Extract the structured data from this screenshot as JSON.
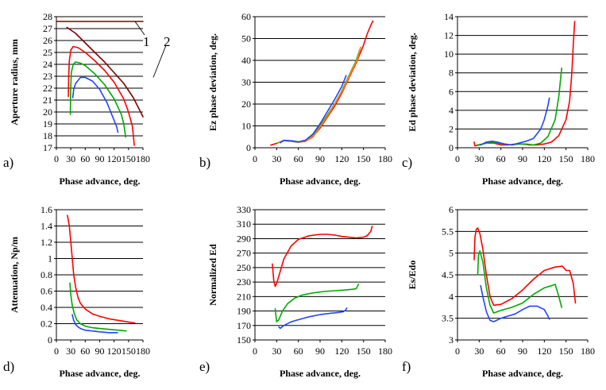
{
  "colors": {
    "red": "#ff0000",
    "green": "#00aa00",
    "blue": "#2244ff",
    "brown": "#800000",
    "grid": "#000000"
  },
  "chart_data": [
    {
      "id": "a",
      "type": "line",
      "panel_label": "a)",
      "xlabel": "Phase advance, deg.",
      "ylabel": "Aperture radius, mm",
      "xlim": [
        0,
        180
      ],
      "ylim": [
        17,
        28
      ],
      "xticks": [
        "0",
        "30",
        "60",
        "90",
        "120",
        "150",
        "180"
      ],
      "yticks": [
        "17",
        "18",
        "19",
        "20",
        "21",
        "22",
        "23",
        "24",
        "25",
        "26",
        "27",
        "28"
      ],
      "hgrid": [
        17,
        18,
        19,
        20,
        21,
        22,
        23,
        24,
        25,
        26,
        27,
        28
      ],
      "annotations": [
        "1",
        "2"
      ],
      "series": [
        {
          "name": "1",
          "color": "#800000",
          "x": [
            0,
            180
          ],
          "y": [
            27.6,
            27.6
          ]
        },
        {
          "name": "2",
          "color": "#800000",
          "x": [
            22,
            40,
            60,
            80,
            100,
            120,
            140,
            160,
            180
          ],
          "y": [
            27.1,
            26.6,
            25.8,
            25.0,
            24.2,
            23.3,
            22.4,
            21.2,
            19.6
          ]
        },
        {
          "name": "red",
          "color": "#ff0000",
          "x": [
            25,
            25.5,
            27,
            30,
            35,
            45,
            60,
            80,
            100,
            120,
            140,
            150,
            158,
            162
          ],
          "y": [
            21.3,
            22.8,
            24.3,
            25.2,
            25.5,
            25.4,
            25.0,
            24.3,
            23.5,
            22.5,
            21.1,
            20.0,
            18.8,
            17.2
          ]
        },
        {
          "name": "green",
          "color": "#00aa00",
          "x": [
            29,
            29.5,
            31,
            35,
            40,
            50,
            60,
            80,
            100,
            120,
            135,
            140,
            144
          ],
          "y": [
            19.8,
            21.7,
            23.3,
            24.0,
            24.2,
            24.1,
            23.9,
            23.2,
            22.3,
            21.1,
            19.8,
            19.0,
            17.9
          ]
        },
        {
          "name": "blue",
          "color": "#2244ff",
          "x": [
            34,
            36,
            40,
            50,
            60,
            75,
            90,
            105,
            115,
            125,
            128
          ],
          "y": [
            21.2,
            21.9,
            22.4,
            22.9,
            22.9,
            22.6,
            21.9,
            20.8,
            19.8,
            18.8,
            18.3
          ]
        }
      ]
    },
    {
      "id": "b",
      "type": "line",
      "panel_label": "b)",
      "xlabel": "Phase advance, deg.",
      "ylabel": "Ez phase deviation, deg.",
      "xlim": [
        0,
        180
      ],
      "ylim": [
        0,
        60
      ],
      "xticks": [
        "0",
        "30",
        "60",
        "90",
        "120",
        "150",
        "180"
      ],
      "yticks": [
        "0",
        "10",
        "20",
        "30",
        "40",
        "50",
        "60"
      ],
      "hgrid": [
        0,
        10,
        20,
        30,
        40,
        50,
        60
      ],
      "series": [
        {
          "name": "red",
          "color": "#ff0000",
          "x": [
            22,
            30,
            40,
            50,
            60,
            70,
            80,
            90,
            100,
            110,
            120,
            130,
            140,
            150,
            155,
            160,
            163
          ],
          "y": [
            1.2,
            2,
            3.3,
            3,
            2.5,
            3,
            5,
            9,
            14,
            19,
            25,
            32,
            39,
            47,
            52,
            56,
            58
          ]
        },
        {
          "name": "green",
          "color": "#00aa00",
          "x": [
            30,
            40,
            50,
            60,
            70,
            80,
            90,
            100,
            110,
            120,
            130,
            140,
            145
          ],
          "y": [
            2,
            3.3,
            3,
            2.6,
            3.2,
            5.5,
            10,
            15,
            20,
            26,
            33,
            40,
            45
          ]
        },
        {
          "name": "orange",
          "color": "#ff8800",
          "x": [
            32,
            42,
            52,
            62,
            72,
            82,
            92,
            102,
            112,
            122,
            132,
            142,
            146
          ],
          "y": [
            2.2,
            3.4,
            3,
            2.7,
            3.4,
            5.8,
            10.5,
            15.5,
            21,
            27,
            34,
            41,
            46
          ]
        },
        {
          "name": "blue",
          "color": "#2244ff",
          "x": [
            35,
            40,
            50,
            60,
            70,
            80,
            90,
            100,
            110,
            120,
            126
          ],
          "y": [
            2.3,
            3.4,
            3.2,
            2.7,
            3.5,
            6.2,
            11,
            16.5,
            22,
            28,
            33
          ]
        }
      ]
    },
    {
      "id": "c",
      "type": "line",
      "panel_label": "c)",
      "xlabel": "Phase advance, deg.",
      "ylabel": "Ed phase deviation, deg.",
      "xlim": [
        0,
        180
      ],
      "ylim": [
        0,
        14
      ],
      "xticks": [
        "0",
        "30",
        "60",
        "90",
        "120",
        "150",
        "180"
      ],
      "yticks": [
        "0",
        "2",
        "4",
        "6",
        "8",
        "10",
        "12",
        "14"
      ],
      "hgrid": [
        0,
        2,
        4,
        6,
        8,
        10,
        12,
        14
      ],
      "series": [
        {
          "name": "red",
          "color": "#ff0000",
          "x": [
            23,
            24,
            30,
            40,
            50,
            60,
            70,
            80,
            90,
            100,
            110,
            120,
            130,
            140,
            150,
            155,
            158,
            160,
            162
          ],
          "y": [
            0.6,
            0.2,
            0.3,
            0.5,
            0.5,
            0.3,
            0.3,
            0.4,
            0.4,
            0.3,
            0.3,
            0.4,
            0.6,
            1.3,
            3.0,
            5.0,
            8.0,
            11.0,
            13.5
          ]
        },
        {
          "name": "green",
          "color": "#00aa00",
          "x": [
            27,
            35,
            45,
            55,
            65,
            75,
            85,
            95,
            105,
            115,
            125,
            135,
            140,
            144
          ],
          "y": [
            0.3,
            0.4,
            0.6,
            0.5,
            0.4,
            0.3,
            0.4,
            0.4,
            0.3,
            0.5,
            1.2,
            3.0,
            5.5,
            8.5
          ]
        },
        {
          "name": "blue",
          "color": "#2244ff",
          "x": [
            32,
            40,
            48,
            55,
            65,
            75,
            85,
            95,
            105,
            115,
            120,
            125,
            127
          ],
          "y": [
            0.3,
            0.6,
            0.7,
            0.6,
            0.4,
            0.3,
            0.5,
            0.7,
            1.0,
            2.0,
            3.0,
            4.5,
            5.3
          ]
        }
      ]
    },
    {
      "id": "d",
      "type": "line",
      "panel_label": "d)",
      "xlabel": "Phase advance, deg.",
      "ylabel": "Attenuation, Np/m",
      "xlim": [
        0,
        180
      ],
      "ylim": [
        0,
        1.6
      ],
      "xticks": [
        "0",
        "30",
        "60",
        "90",
        "120",
        "150",
        "180"
      ],
      "yticks": [
        "0",
        "0.2",
        "0.4",
        "0.6",
        "0.8",
        "1",
        "1.2",
        "1.4",
        "1.6"
      ],
      "hgrid": [
        0,
        0.2,
        0.4,
        0.6,
        0.8,
        1.0,
        1.2,
        1.4,
        1.6
      ],
      "series": [
        {
          "name": "red",
          "color": "#ff0000",
          "x": [
            23,
            27,
            30,
            33,
            36,
            40,
            45,
            50,
            60,
            75,
            90,
            110,
            130,
            150,
            163
          ],
          "y": [
            1.53,
            1.4,
            1.2,
            1.0,
            0.8,
            0.65,
            0.52,
            0.45,
            0.38,
            0.32,
            0.29,
            0.26,
            0.24,
            0.22,
            0.21
          ]
        },
        {
          "name": "green",
          "color": "#00aa00",
          "x": [
            28,
            30,
            33,
            37,
            42,
            50,
            60,
            75,
            90,
            110,
            130,
            145
          ],
          "y": [
            0.7,
            0.55,
            0.42,
            0.33,
            0.25,
            0.2,
            0.17,
            0.15,
            0.14,
            0.13,
            0.12,
            0.11
          ]
        },
        {
          "name": "blue",
          "color": "#2244ff",
          "x": [
            33,
            36,
            40,
            45,
            50,
            60,
            75,
            90,
            110,
            127
          ],
          "y": [
            0.31,
            0.24,
            0.19,
            0.16,
            0.14,
            0.12,
            0.11,
            0.1,
            0.09,
            0.09
          ]
        }
      ]
    },
    {
      "id": "e",
      "type": "line",
      "panel_label": "e)",
      "xlabel": "Phase advance, deg.",
      "ylabel": "Normalized Ed",
      "xlim": [
        0,
        180
      ],
      "ylim": [
        150,
        330
      ],
      "xticks": [
        "0",
        "30",
        "60",
        "90",
        "120",
        "150",
        "180"
      ],
      "yticks": [
        "150",
        "170",
        "190",
        "210",
        "230",
        "250",
        "270",
        "290",
        "310",
        "330"
      ],
      "hgrid": [
        150,
        170,
        190,
        210,
        230,
        250,
        270,
        290,
        310,
        330
      ],
      "series": [
        {
          "name": "red",
          "color": "#ff0000",
          "x": [
            24,
            26,
            28,
            30,
            35,
            40,
            50,
            60,
            75,
            90,
            100,
            110,
            120,
            130,
            140,
            150,
            155,
            160,
            162
          ],
          "y": [
            255,
            232,
            224,
            228,
            245,
            262,
            280,
            289,
            294,
            296,
            296,
            295,
            293,
            292,
            291,
            292,
            294,
            300,
            307
          ]
        },
        {
          "name": "green",
          "color": "#00aa00",
          "x": [
            28,
            30,
            33,
            38,
            45,
            55,
            65,
            80,
            95,
            110,
            125,
            135,
            140,
            143
          ],
          "y": [
            193,
            175,
            178,
            190,
            200,
            208,
            212,
            215,
            217,
            218,
            219,
            220,
            221,
            227
          ]
        },
        {
          "name": "blue",
          "color": "#2244ff",
          "x": [
            33,
            35,
            40,
            50,
            60,
            75,
            90,
            105,
            115,
            122,
            125,
            127
          ],
          "y": [
            168,
            166,
            170,
            175,
            178,
            182,
            185,
            187,
            188,
            189,
            191,
            194
          ]
        }
      ]
    },
    {
      "id": "f",
      "type": "line",
      "panel_label": "f)",
      "xlabel": "Phase advance, deg.",
      "ylabel": "Es/Edo",
      "xlim": [
        0,
        180
      ],
      "ylim": [
        3,
        6
      ],
      "xticks": [
        "0",
        "30",
        "60",
        "90",
        "120",
        "150",
        "180"
      ],
      "yticks": [
        "3",
        "3.5",
        "4",
        "4.5",
        "5",
        "5.5",
        "6"
      ],
      "hgrid": [
        3,
        3.5,
        4,
        4.5,
        5,
        5.5,
        6
      ],
      "series": [
        {
          "name": "red",
          "color": "#ff0000",
          "x": [
            23,
            24,
            26,
            28,
            31,
            35,
            40,
            45,
            50,
            60,
            75,
            90,
            105,
            120,
            135,
            145,
            150,
            155,
            160,
            163
          ],
          "y": [
            4.85,
            5.35,
            5.55,
            5.58,
            5.45,
            5.1,
            4.5,
            4.0,
            3.8,
            3.82,
            3.95,
            4.15,
            4.4,
            4.6,
            4.68,
            4.7,
            4.6,
            4.6,
            4.3,
            3.85
          ]
        },
        {
          "name": "green",
          "color": "#00aa00",
          "x": [
            28,
            29,
            31,
            35,
            40,
            45,
            50,
            60,
            75,
            90,
            105,
            120,
            130,
            135,
            140,
            144
          ],
          "y": [
            4.5,
            4.95,
            5.05,
            4.8,
            4.2,
            3.8,
            3.62,
            3.68,
            3.75,
            3.85,
            4.05,
            4.2,
            4.25,
            4.28,
            4.0,
            3.75
          ]
        },
        {
          "name": "blue",
          "color": "#2244ff",
          "x": [
            32,
            35,
            40,
            45,
            50,
            60,
            70,
            80,
            90,
            100,
            110,
            120,
            125,
            127
          ],
          "y": [
            4.25,
            4.0,
            3.65,
            3.45,
            3.42,
            3.5,
            3.55,
            3.6,
            3.7,
            3.78,
            3.78,
            3.7,
            3.55,
            3.48
          ]
        }
      ]
    }
  ]
}
